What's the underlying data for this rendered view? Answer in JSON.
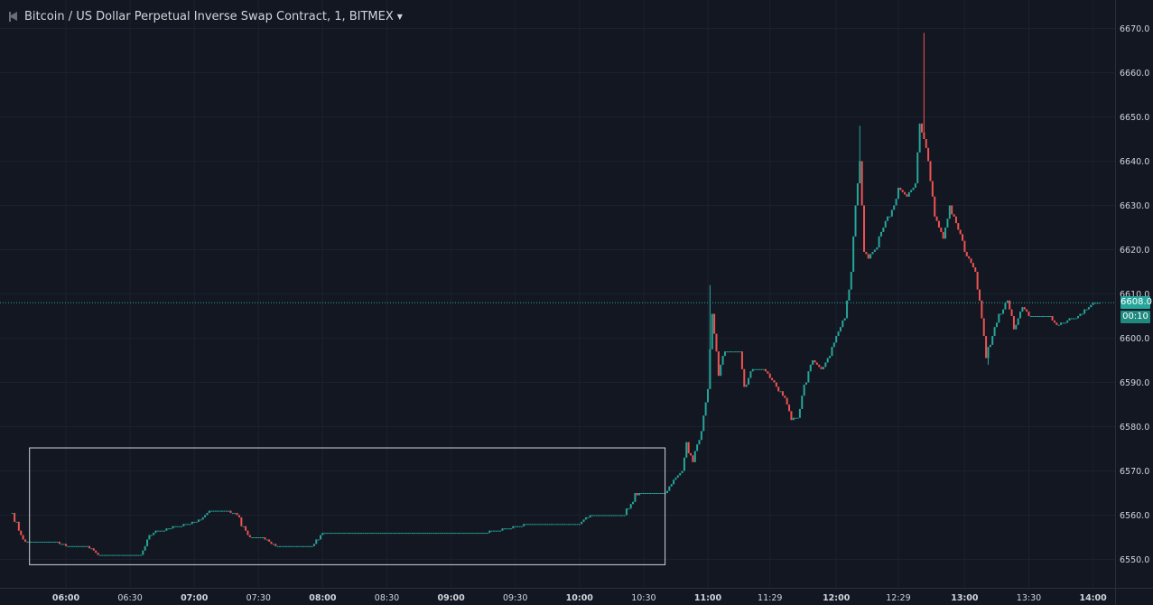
{
  "legend": {
    "title": "Bitcoin / US Dollar Perpetual Inverse Swap Contract, 1, BITMEX",
    "collapse_icon": "collapse-triangle-icon",
    "dropdown_icon": "caret-down-icon"
  },
  "colors": {
    "background": "#131722",
    "up": "#26a69a",
    "down": "#ef5350",
    "last_price_line": "#26a69a",
    "axis_text": "#d1d4dc",
    "selection_box": "#d1d4dc"
  },
  "price_tags": {
    "last_price": "6608.0",
    "countdown": "00:10"
  },
  "chart_data": {
    "type": "candlestick",
    "interval": "1",
    "exchange": "BITMEX",
    "y_axis": {
      "ticks": [
        "6550.0",
        "6560.0",
        "6570.0",
        "6580.0",
        "6590.0",
        "6600.0",
        "6610.0",
        "6620.0",
        "6630.0",
        "6640.0",
        "6650.0",
        "6660.0",
        "6670.0"
      ],
      "ylim": [
        6546,
        6673
      ],
      "position": "right"
    },
    "x_axis": {
      "ticks": [
        "06:00",
        "06:30",
        "07:00",
        "07:30",
        "08:00",
        "08:30",
        "09:00",
        "09:30",
        "10:00",
        "10:30",
        "11:00",
        "11:29",
        "12:00",
        "12:29",
        "13:00",
        "13:30",
        "14:00"
      ],
      "bold_ticks": [
        "06:00",
        "07:00",
        "08:00",
        "09:00",
        "10:00",
        "11:00",
        "12:00",
        "13:00",
        "14:00"
      ],
      "range": [
        "05:35",
        "14:07"
      ]
    },
    "last_price": 6608.0,
    "price_keypoints": [
      [
        "05:35",
        6560
      ],
      [
        "05:40",
        6554
      ],
      [
        "05:48",
        6554
      ],
      [
        "05:55",
        6553.8
      ],
      [
        "06:02",
        6553
      ],
      [
        "06:10",
        6553
      ],
      [
        "06:15",
        6551
      ],
      [
        "06:25",
        6551
      ],
      [
        "06:35",
        6551
      ],
      [
        "06:40",
        6556
      ],
      [
        "06:47",
        6557
      ],
      [
        "06:57",
        6558
      ],
      [
        "07:03",
        6559
      ],
      [
        "07:07",
        6561
      ],
      [
        "07:15",
        6561
      ],
      [
        "07:20",
        6560
      ],
      [
        "07:25",
        6555
      ],
      [
        "07:32",
        6555
      ],
      [
        "07:38",
        6553
      ],
      [
        "07:47",
        6553
      ],
      [
        "07:55",
        6553
      ],
      [
        "08:00",
        6556
      ],
      [
        "08:12",
        6556
      ],
      [
        "08:30",
        6556
      ],
      [
        "08:48",
        6556
      ],
      [
        "09:00",
        6556
      ],
      [
        "09:15",
        6556
      ],
      [
        "09:25",
        6557
      ],
      [
        "09:35",
        6558
      ],
      [
        "09:50",
        6558
      ],
      [
        "10:00",
        6558
      ],
      [
        "10:05",
        6560
      ],
      [
        "10:15",
        6560
      ],
      [
        "10:20",
        6560
      ],
      [
        "10:27",
        6565
      ],
      [
        "10:40",
        6565
      ],
      [
        "10:44",
        6568
      ],
      [
        "10:48",
        6570
      ],
      [
        "10:50",
        6576
      ],
      [
        "10:53",
        6572
      ],
      [
        "10:57",
        6579
      ],
      [
        "11:00",
        6588
      ],
      [
        "11:02",
        6606
      ],
      [
        "11:05",
        6592
      ],
      [
        "11:08",
        6597
      ],
      [
        "11:12",
        6597
      ],
      [
        "11:15",
        6597
      ],
      [
        "11:17",
        6589
      ],
      [
        "11:21",
        6593
      ],
      [
        "11:26",
        6593
      ],
      [
        "11:31",
        6590
      ],
      [
        "11:36",
        6586
      ],
      [
        "11:39",
        6582
      ],
      [
        "11:42",
        6582
      ],
      [
        "11:45",
        6589
      ],
      [
        "11:49",
        6595
      ],
      [
        "11:53",
        6593
      ],
      [
        "11:57",
        6596
      ],
      [
        "12:00",
        6600
      ],
      [
        "12:04",
        6605
      ],
      [
        "12:07",
        6615
      ],
      [
        "12:09",
        6630
      ],
      [
        "12:11",
        6640
      ],
      [
        "12:13",
        6620
      ],
      [
        "12:15",
        6618
      ],
      [
        "12:18",
        6620
      ],
      [
        "12:22",
        6625
      ],
      [
        "12:27",
        6630
      ],
      [
        "12:29",
        6634
      ],
      [
        "12:33",
        6632
      ],
      [
        "12:37",
        6635
      ],
      [
        "12:39",
        6649
      ],
      [
        "12:43",
        6640
      ],
      [
        "12:46",
        6628
      ],
      [
        "12:50",
        6622
      ],
      [
        "12:53",
        6630
      ],
      [
        "12:57",
        6625
      ],
      [
        "13:00",
        6620
      ],
      [
        "13:05",
        6615
      ],
      [
        "13:08",
        6605
      ],
      [
        "13:10",
        6596
      ],
      [
        "13:13",
        6600
      ],
      [
        "13:16",
        6605
      ],
      [
        "13:20",
        6609
      ],
      [
        "13:23",
        6602
      ],
      [
        "13:27",
        6607
      ],
      [
        "13:30",
        6605
      ],
      [
        "13:35",
        6605
      ],
      [
        "13:40",
        6605
      ],
      [
        "13:43",
        6603
      ],
      [
        "13:48",
        6604
      ],
      [
        "13:53",
        6605
      ],
      [
        "14:00",
        6608
      ],
      [
        "14:03",
        6608
      ]
    ],
    "notable_wicks": [
      {
        "time": "11:01",
        "high": 6612
      },
      {
        "time": "12:11",
        "high": 6648
      },
      {
        "time": "12:41",
        "high": 6669
      },
      {
        "time": "13:11",
        "low": 6594
      }
    ],
    "annotation": {
      "type": "rectangle",
      "from_time": "05:43",
      "to_time": "10:40",
      "from_price": 6548.8,
      "to_price": 6575.2
    }
  }
}
